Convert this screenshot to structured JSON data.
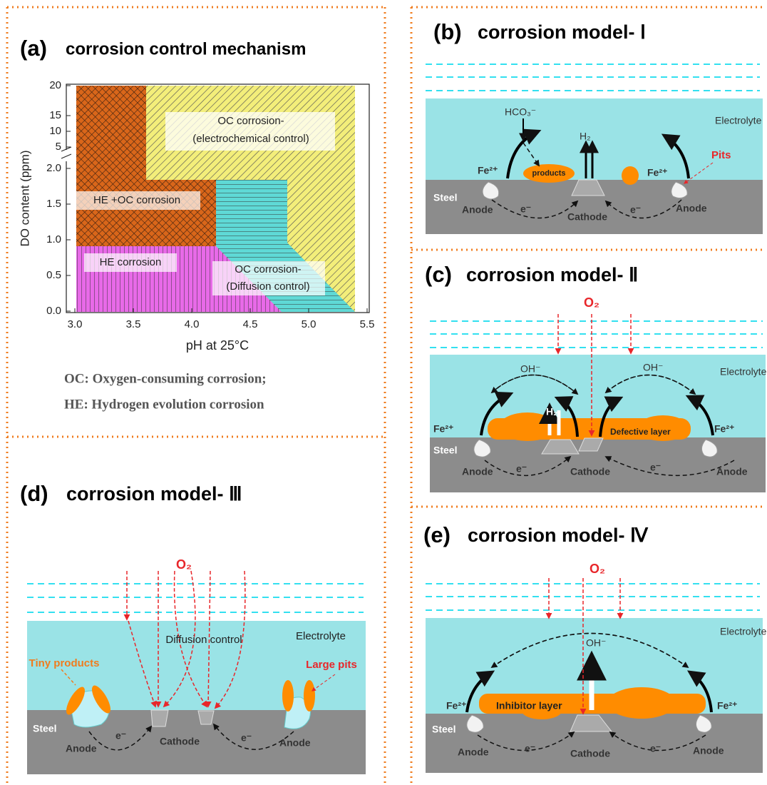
{
  "panel_a": {
    "label": "(a)",
    "title": "corrosion control mechanism",
    "y_axis_label": "DO content (ppm)",
    "x_axis_label": "pH at 25°C",
    "x_ticks": [
      "3.0",
      "3.5",
      "4.0",
      "4.5",
      "5.0",
      "5.5"
    ],
    "y_ticks_lower": [
      "0.0",
      "0.5",
      "1.0",
      "1.5",
      "2.0"
    ],
    "y_ticks_upper": [
      "5",
      "10",
      "15",
      "20"
    ],
    "regions": {
      "oc_electrochemical": [
        "OC corrosion-",
        "(electrochemical control)"
      ],
      "he_oc": "HE +OC corrosion",
      "he": "HE corrosion",
      "oc_diffusion": [
        "OC corrosion-",
        "(Diffusion control)"
      ]
    },
    "notes": [
      "OC: Oxygen-consuming corrosion;",
      "HE: Hydrogen evolution corrosion"
    ]
  },
  "panel_b": {
    "label": "(b)",
    "title": "corrosion model- Ⅰ",
    "texts": {
      "hco3": "HCO₃⁻",
      "electrolyte": "Electrolyte",
      "h2": "H₂",
      "pits": "Pits",
      "fe_left": "Fe²⁺",
      "products": "products",
      "fe_right": "Fe²⁺",
      "steel": "Steel",
      "anode_left": "Anode",
      "e_left": "e⁻",
      "cathode": "Cathode",
      "e_right": "e⁻",
      "anode_right": "Anode"
    }
  },
  "panel_c": {
    "label": "(c)",
    "title": "corrosion model- Ⅱ",
    "texts": {
      "o2": "O₂",
      "oh_left": "OH⁻",
      "oh_right": "OH⁻",
      "electrolyte": "Electrolyte",
      "fe_left": "Fe²⁺",
      "h2": "H₂",
      "defective_layer": "Defective layer",
      "fe_right": "Fe²⁺",
      "steel": "Steel",
      "anode_left": "Anode",
      "e_left": "e⁻",
      "cathode": "Cathode",
      "e_right": "e⁻",
      "anode_right": "Anode"
    }
  },
  "panel_d": {
    "label": "(d)",
    "title": "corrosion model- Ⅲ",
    "texts": {
      "o2": "O₂",
      "diffusion_control": "Diffusion control",
      "electrolyte": "Electrolyte",
      "tiny_products": "Tiny products",
      "large_pits": "Large pits",
      "steel": "Steel",
      "anode_left": "Anode",
      "e_left": "e⁻",
      "cathode": "Cathode",
      "e_right": "e⁻",
      "anode_right": "Anode"
    }
  },
  "panel_e": {
    "label": "(e)",
    "title": "corrosion model- Ⅳ",
    "texts": {
      "o2": "O₂",
      "electrolyte": "Electrolyte",
      "oh": "OH⁻",
      "fe_left": "Fe²⁺",
      "inhibitor_layer": "Inhibitor layer",
      "fe_right": "Fe²⁺",
      "steel": "Steel",
      "anode_left": "Anode",
      "e_left": "e⁻",
      "cathode": "Cathode",
      "e_right": "e⁻",
      "anode_right": "Anode"
    }
  }
}
